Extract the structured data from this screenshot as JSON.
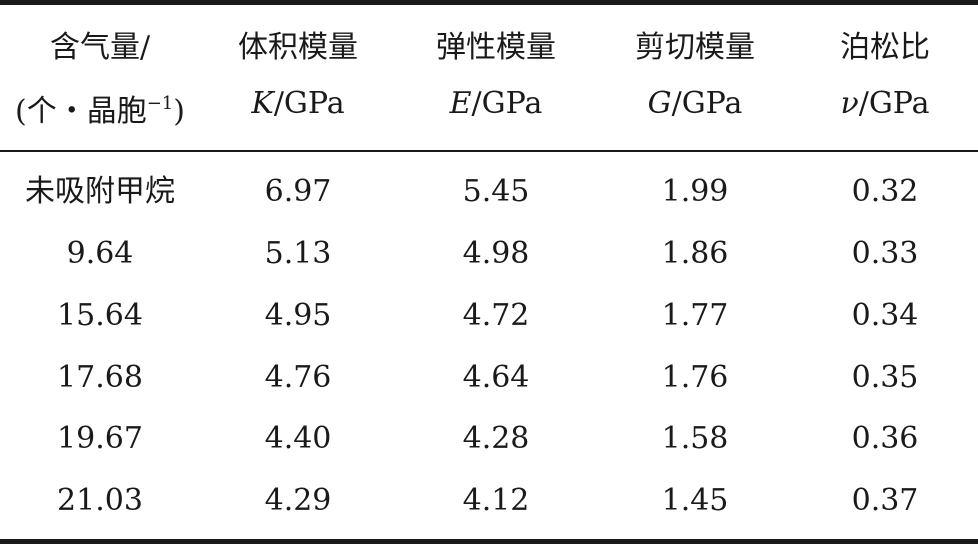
{
  "table": {
    "headers": [
      {
        "line1": "含气量/",
        "line2_prefix": "(个・晶胞",
        "line2_sup": "−1",
        "line2_suffix": ")"
      },
      {
        "line1": "体积模量",
        "sym": "K",
        "unit": "/GPa"
      },
      {
        "line1": "弹性模量",
        "sym": "E",
        "unit": "/GPa"
      },
      {
        "line1": "剪切模量",
        "sym": "G",
        "unit": "/GPa"
      },
      {
        "line1": "泊松比",
        "sym": "ν",
        "unit": "/GPa"
      }
    ],
    "rows": [
      [
        "未吸附甲烷",
        "6.97",
        "5.45",
        "1.99",
        "0.32"
      ],
      [
        "9.64",
        "5.13",
        "4.98",
        "1.86",
        "0.33"
      ],
      [
        "15.64",
        "4.95",
        "4.72",
        "1.77",
        "0.34"
      ],
      [
        "17.68",
        "4.76",
        "4.64",
        "1.76",
        "0.35"
      ],
      [
        "19.67",
        "4.40",
        "4.28",
        "1.58",
        "0.36"
      ],
      [
        "21.03",
        "4.29",
        "4.12",
        "1.45",
        "0.37"
      ]
    ]
  }
}
